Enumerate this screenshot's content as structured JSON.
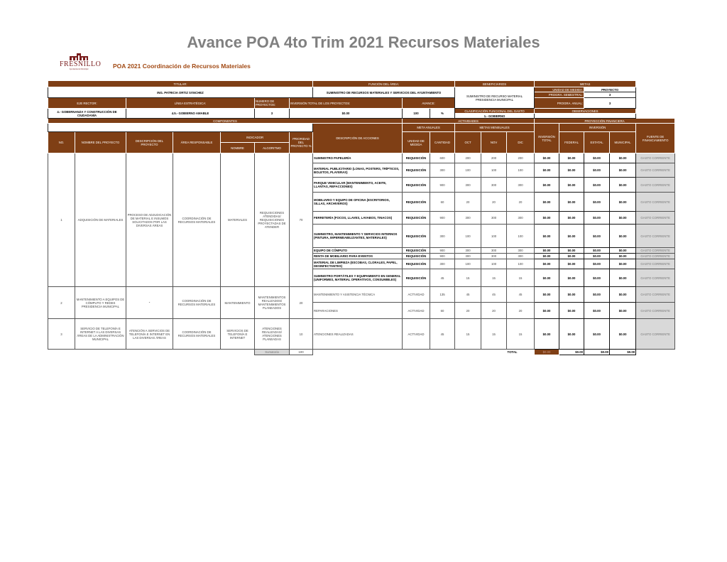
{
  "title": "Avance POA 4to Trim 2021 Recursos Materiales",
  "logo": {
    "text": "FRESNILLO",
    "tagline": "Ayuntamiento Municipal"
  },
  "subtitle": "POA 2021  Coordinación de Recursos Materiales",
  "colors": {
    "header": "#7f3f15",
    "subtitle": "#a24a14",
    "fuente": "#d9d9d9"
  },
  "header": {
    "titular_label": "TITULAR:",
    "titular": "ING. PATRICIA ORTIZ SÁNCHEZ",
    "funcion_label": "FUNCIÓN DEL ÁREA:",
    "funcion": "SUMINISTRO DE RECURSOS MATERIALES Y SERVICIOS DEL AYUNTAMIENTO",
    "beneficiarios_label": "BENEFICIARIOS",
    "beneficiarios": "SUMINISTRO DE RECURSO MATERIAL PRESIDENCIA MUNICIPAL",
    "metas_label": "METAS",
    "unidad_label": "UNIDAD DE MEDIDA:",
    "unidad": "PROYECTO",
    "semestral_label": "PROGRA. SEMESTRAL:",
    "semestral": "3",
    "anual_label": "PROGRA. ANUAL:",
    "anual": "3",
    "eje_label": "EJE RECTOR:",
    "eje": "4.- GOBERNANZA Y CONSTRUCCIÓN DE CIUDADANÍA",
    "linea_label": "LÍNEA ESTRATÉGICA:",
    "linea": "4.5.- GOBIERNO AMABLE",
    "numero_label": "NUMERO DE PROYECTOS:",
    "numero": "3",
    "inversion_label": "INVERSIÓN TOTAL DE LOS PROYECTOS:",
    "inversion": "$0.00",
    "avance_label": "AVANCE:",
    "avance": "100",
    "avance_unit": "%",
    "clasificacion_label": "CLASIFICACIÓN FUNCIONAL DEL GASTO",
    "clasificacion": "1.- GOBIERNO",
    "observaciones_label": "OBSERVACIONES",
    "observaciones": ""
  },
  "sections": {
    "componentes": "COMPONENTES",
    "actividades": "ACTIVIDADES",
    "proyeccion": "PROYECCIÓN FINANCIERA",
    "meta_anuales": "META ANUALES",
    "metas_mensuales": "METAS MENSUALES",
    "inversion": "INVERSIÓN"
  },
  "columns": {
    "no": "NO.",
    "nombre": "NOMBRE DEL PROYECTO",
    "descripcion": "DESCRIPCIÓN DEL PROYECTO",
    "area": "ÁREA RESPONSABLE",
    "indicador": "INDICADOR",
    "ind_nombre": "NOMBRE",
    "algoritmo": "ALGORITMO",
    "prioridad": "PRIORIDAD DEL PROYECTO %",
    "acciones": "DESCRIPCIÓN DE ACCIONES",
    "unidad": "UNIDAD DE MEDIDA",
    "cantidad": "CANTIDAD",
    "oct": "OCT",
    "nov": "NOV",
    "dic": "DIC",
    "inv_total": "INVERSIÓN TOTAL",
    "federal": "FEDERAL",
    "estatal": "ESTATAL",
    "municipal": "MUNICIPAL",
    "fuente": "FUENTE DE FINANCIAMIENTO"
  },
  "projects": [
    {
      "no": "1",
      "nombre": "ADQUISICIÓN DE MATERIALES",
      "descripcion": "PROCESO DE ADJUDICACIÓN DE MATERIAL E INSUMOS SOLICITADOS POR LAS DIVERSAS ÁREAS",
      "area": "COORDINACIÓN DE RECURSOS MATERIALES",
      "indicador": "MATERIALES",
      "algoritmo": "REQUISICIONES ATENDIDAS/ REQUISICIONES PROYECTADAS DE ATENDER",
      "prioridad": "70",
      "acciones": [
        {
          "desc": "SUMINISTRO PAPELERÍA",
          "unidad": "REQUISICIÓN",
          "cantidad": "600",
          "oct": "200",
          "nov": "200",
          "dic": "200",
          "total": "$0.00",
          "federal": "$0.00",
          "estatal": "$0.00",
          "municipal": "$0.00",
          "fuente": "GASTO CORRIENTE",
          "h": 14
        },
        {
          "desc": "MATERIAL PUBLICITARIO (LONAS, POSTERS, TRÍPTICOS, BOLETOS, PLAYERAS)",
          "unidad": "REQUISICIÓN",
          "cantidad": "300",
          "oct": "100",
          "nov": "100",
          "dic": "100",
          "total": "$0.00",
          "federal": "$0.00",
          "estatal": "$0.00",
          "municipal": "$0.00",
          "fuente": "GASTO CORRIENTE",
          "h": 20
        },
        {
          "desc": "PARQUE VEHICULAR (MANTENIMIENTO, ACEITE, LLANTAS, REFACCIONES)",
          "unidad": "REQUISICIÓN",
          "cantidad": "900",
          "oct": "300",
          "nov": "300",
          "dic": "300",
          "total": "$0.00",
          "federal": "$0.00",
          "estatal": "$0.00",
          "municipal": "$0.00",
          "fuente": "GASTO CORRIENTE",
          "h": 21
        },
        {
          "desc": "MOBILIARIO Y EQUIPO DE OFICINA (ESCRITORIOS, SILLAS, ARCHIVEROS)",
          "unidad": "REQUISICIÓN",
          "cantidad": "60",
          "oct": "20",
          "nov": "20",
          "dic": "20",
          "total": "$0.00",
          "federal": "$0.00",
          "estatal": "$0.00",
          "municipal": "$0.00",
          "fuente": "GASTO CORRIENTE",
          "h": 27
        },
        {
          "desc": "FERRETERÍA (FOCOS, LLAVES, LAVABOS, TINACOS)",
          "unidad": "REQUISICIÓN",
          "cantidad": "900",
          "oct": "300",
          "nov": "300",
          "dic": "300",
          "total": "$0.00",
          "federal": "$0.00",
          "estatal": "$0.00",
          "municipal": "$0.00",
          "fuente": "GASTO CORRIENTE",
          "h": 18
        },
        {
          "desc": "SUMINISTRO, MANTENIMIENTO Y SERVICIOS INTERNOS (PINTURA, IMPERMEABILIZANTES, MATERIALES)",
          "unidad": "REQUISICIÓN",
          "cantidad": "300",
          "oct": "100",
          "nov": "100",
          "dic": "100",
          "total": "$0.00",
          "federal": "$0.00",
          "estatal": "$0.00",
          "municipal": "$0.00",
          "fuente": "GASTO CORRIENTE",
          "h": 33
        },
        {
          "desc": "EQUIPO DE CÓMPUTO",
          "unidad": "REQUISICIÓN",
          "cantidad": "900",
          "oct": "300",
          "nov": "300",
          "dic": "300",
          "total": "$0.00",
          "federal": "$0.00",
          "estatal": "$0.00",
          "municipal": "$0.00",
          "fuente": "GASTO CORRIENTE",
          "h": 8
        },
        {
          "desc": "RENTA DE MOBILIARIO PARA EVENTOS",
          "unidad": "REQUISICIÓN",
          "cantidad": "900",
          "oct": "300",
          "nov": "300",
          "dic": "300",
          "total": "$0.00",
          "federal": "$0.00",
          "estatal": "$0.00",
          "municipal": "$0.00",
          "fuente": "GASTO CORRIENTE",
          "h": 8
        },
        {
          "desc": "MATERIAL DE LIMPIEZA (ESCOBAS, CLORALES, PAPEL, DESINFECTANTES)",
          "unidad": "REQUISICIÓN",
          "cantidad": "300",
          "oct": "100",
          "nov": "100",
          "dic": "100",
          "total": "$0.00",
          "federal": "$0.00",
          "estatal": "$0.00",
          "municipal": "$0.00",
          "fuente": "GASTO CORRIENTE",
          "h": 14
        },
        {
          "desc": "SUMINISTRO PORTÁTILES Y EQUIPAMIENTO EN GENERAL (UNIFORMES, MATERIAL OPERATIVOS, CONSUMIBLES)",
          "unidad": "REQUISICIÓN",
          "cantidad": "45",
          "oct": "15",
          "nov": "15",
          "dic": "15",
          "total": "$0.00",
          "federal": "$0.00",
          "estatal": "$0.00",
          "municipal": "$0.00",
          "fuente": "GASTO CORRIENTE",
          "h": 25
        }
      ]
    },
    {
      "no": "2",
      "nombre": "MANTENIMIENTO A EQUIPOS DE CÓMPUTO Y REDES PRESIDENCIA MUNICIPAL",
      "descripcion": "\"",
      "area": "COORDINACIÓN DE RECURSOS MATERIALES",
      "indicador": "MANTENIMIENTO",
      "algoritmo": "MANTENIMIENTOS REALIZADOS/ MANTENIMIENTOS PLANEADOS",
      "prioridad": "20",
      "acciones": [
        {
          "desc": "MANTENIMIENTO Y ASISTENCIA TÉCNICA",
          "unidad": "ACTIVIDAD",
          "cantidad": "135",
          "oct": "45",
          "nov": "45",
          "dic": "45",
          "total": "$0.00",
          "federal": "$0.00",
          "estatal": "$0.00",
          "municipal": "$0.00",
          "fuente": "GASTO CORRIENTE",
          "h": 22
        },
        {
          "desc": "REPARACIONES",
          "unidad": "ACTIVIDAD",
          "cantidad": "60",
          "oct": "20",
          "nov": "20",
          "dic": "20",
          "total": "$0.00",
          "federal": "$0.00",
          "estatal": "$0.00",
          "municipal": "$0.00",
          "fuente": "GASTO CORRIENTE",
          "h": 23
        }
      ]
    },
    {
      "no": "3",
      "nombre": "SERVICIO DE TELEFONÍA E INTERNET A LAS DIVERSAS ÁREAS DE LA ADMINISTRACIÓN MUNICIPAL",
      "descripcion": "ATENCIÓN A SERVICIOS DE TELEFONÍA E INTERNET EN LAS DIVERSAS ÁREAS",
      "area": "COORDINACIÓN DE RECURSOS MATERIALES",
      "indicador": "SERVICIOS DE TELEFONÍA E INTERNET",
      "algoritmo": "ATENCIONES REALIZADAS/ ATENCIONES PLANEADAS",
      "prioridad": "10",
      "acciones": [
        {
          "desc": "ATENCIONES REALIZADAS",
          "unidad": "ACTIVIDAD",
          "cantidad": "45",
          "oct": "15",
          "nov": "15",
          "dic": "15",
          "total": "$0.00",
          "federal": "$0.00",
          "estatal": "$0.00",
          "municipal": "$0.00",
          "fuente": "GASTO CORRIENTE",
          "h": 43
        }
      ]
    }
  ],
  "footer": {
    "sumatoria_label": "Sumatoria",
    "sumatoria": "100",
    "total_label": "TOTAL",
    "total": "$0.00",
    "federal": "$0.00",
    "estatal": "$0.00",
    "municipal": "$0.00"
  }
}
